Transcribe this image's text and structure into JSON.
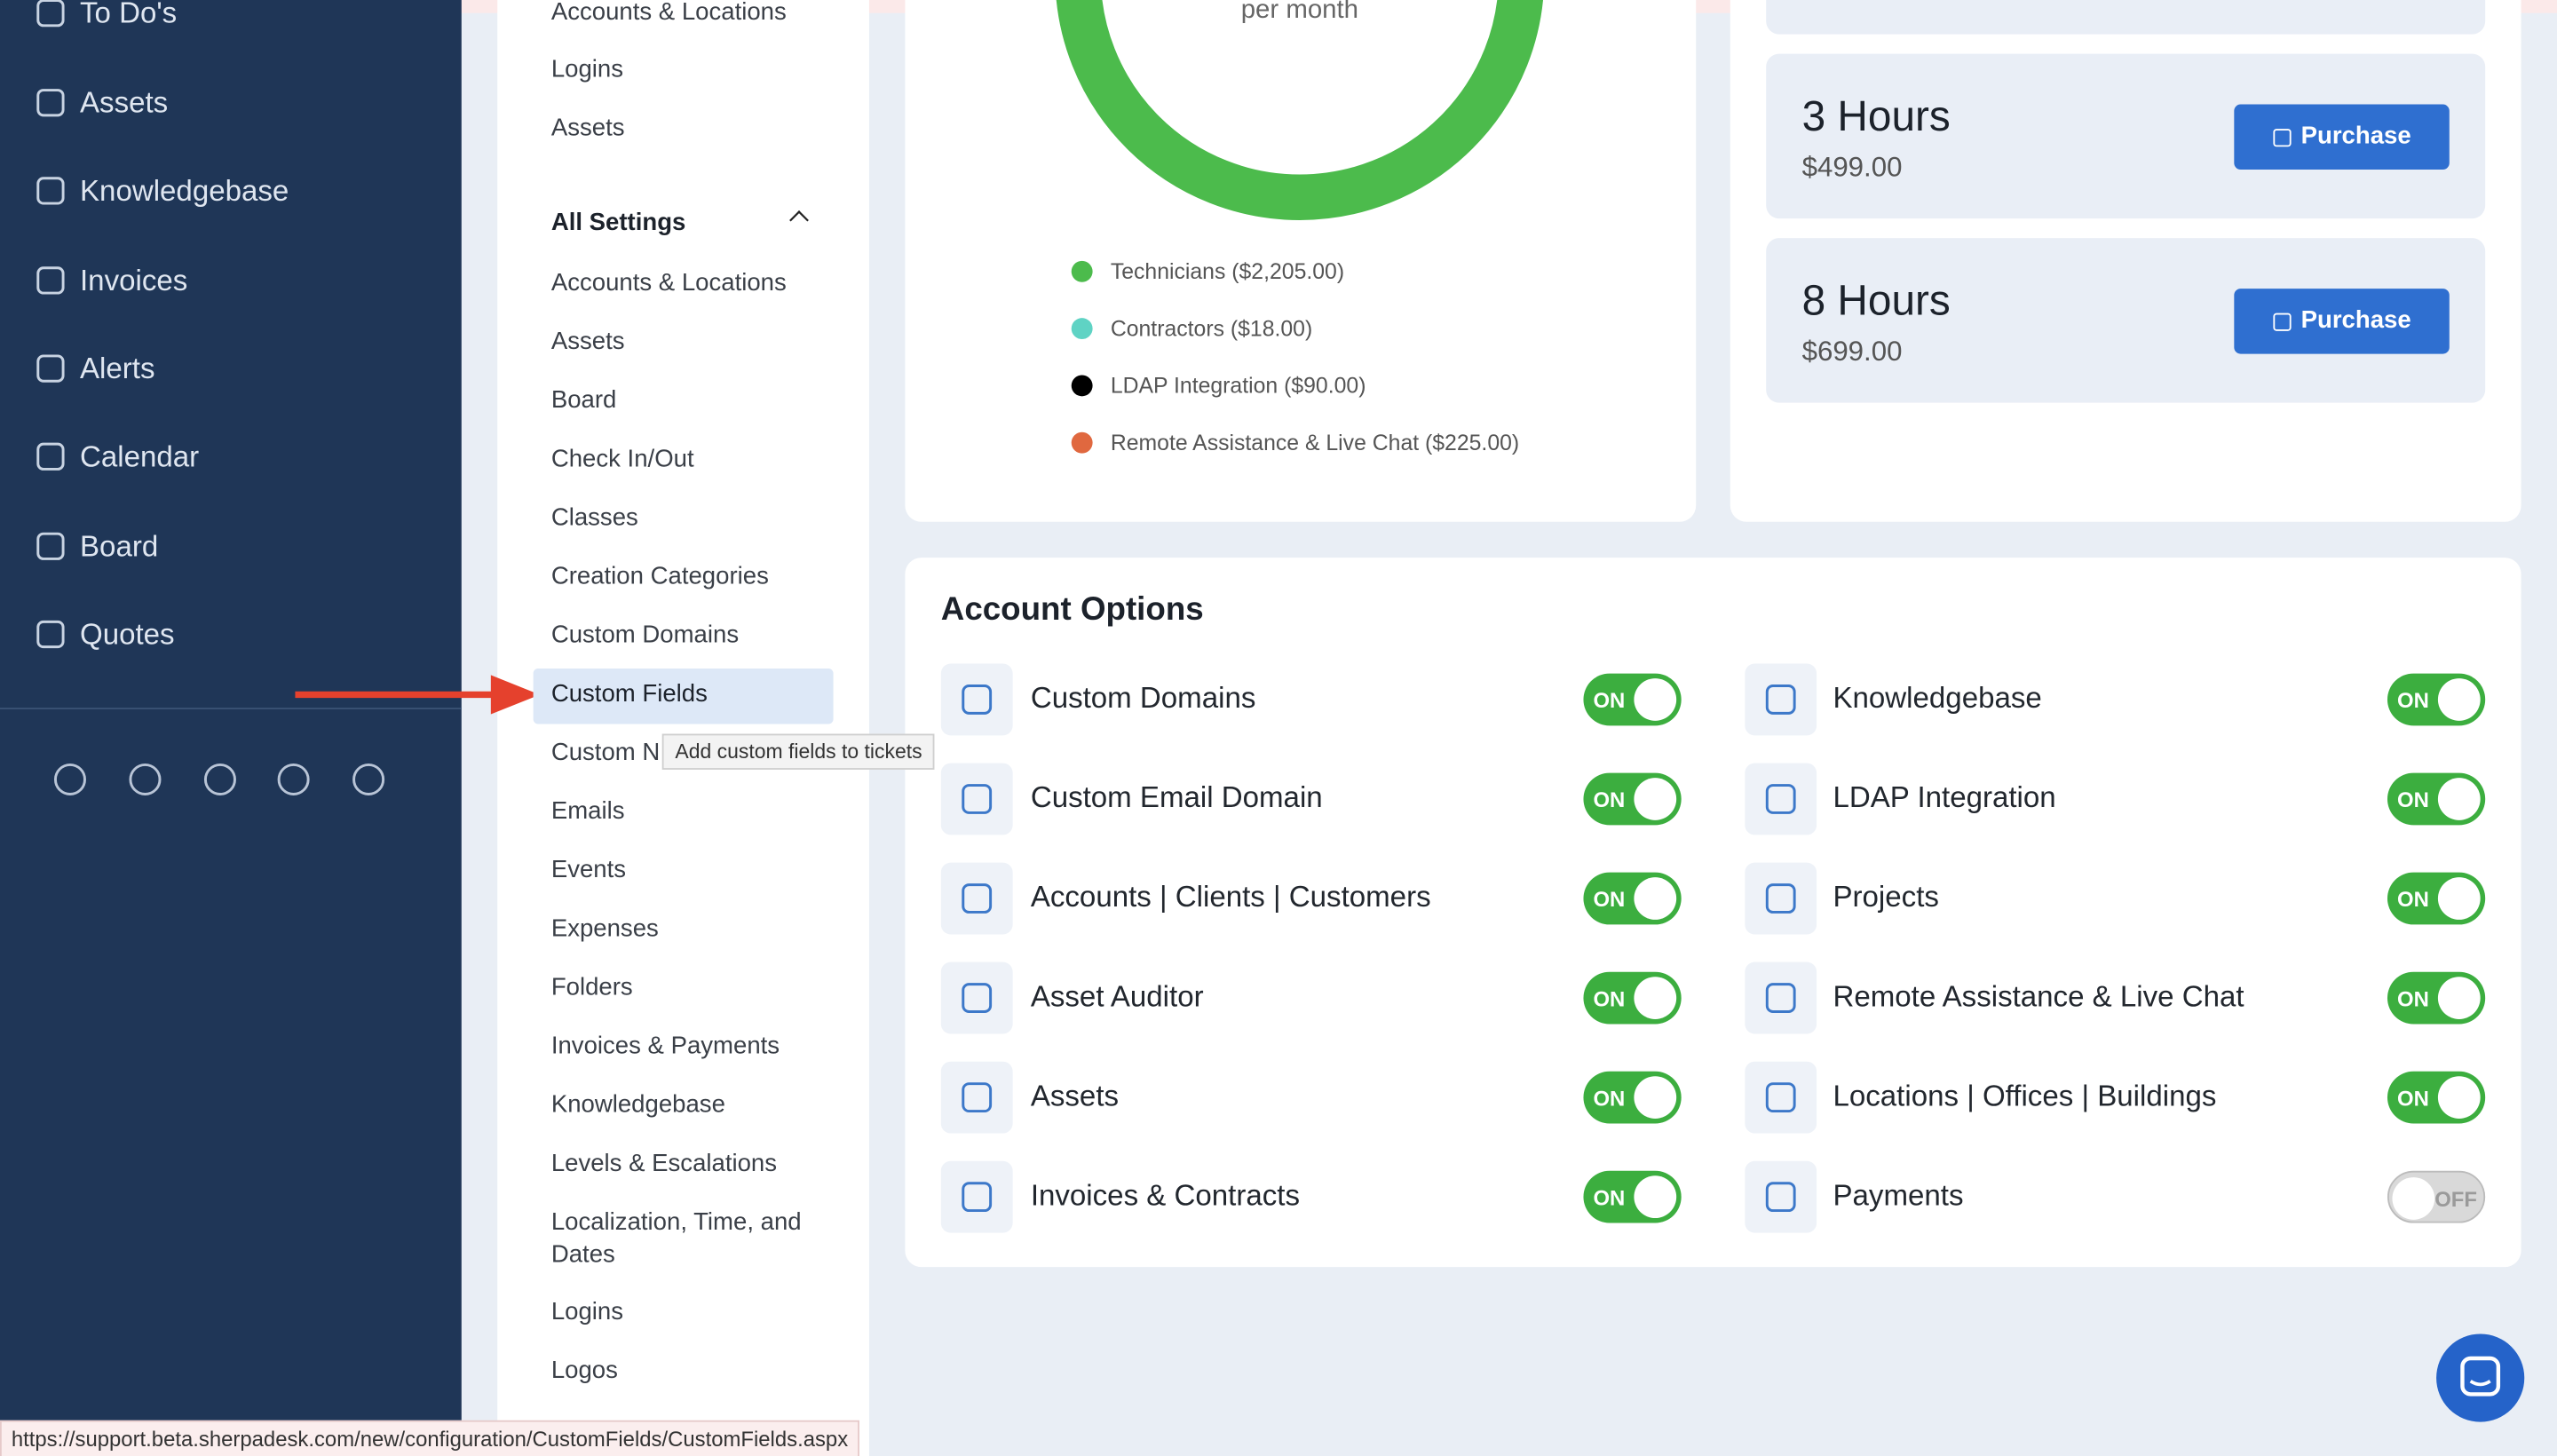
{
  "nav": {
    "items": [
      "To Do's",
      "Assets",
      "Knowledgebase",
      "Invoices",
      "Alerts",
      "Calendar",
      "Board",
      "Quotes"
    ]
  },
  "settings_menu": {
    "top_items": [
      "Accounts & Locations",
      "Logins",
      "Assets"
    ],
    "section_title": "All Settings",
    "items": [
      "Accounts & Locations",
      "Assets",
      "Board",
      "Check In/Out",
      "Classes",
      "Creation Categories",
      "Custom Domains",
      "Custom Fields",
      "Custom N",
      "Emails",
      "Events",
      "Expenses",
      "Folders",
      "Invoices & Payments",
      "Knowledgebase",
      "Levels & Escalations",
      "Localization, Time, and Dates",
      "Logins",
      "Logos"
    ]
  },
  "tooltip": "Add custom fields to tickets",
  "billing": {
    "center_text": "per month",
    "legend": [
      {
        "label": "Technicians ($2,205.00)",
        "color": "#4cbb4c"
      },
      {
        "label": "Contractors ($18.00)",
        "color": "#5fd3c4"
      },
      {
        "label": "LDAP Integration ($90.00)",
        "color": "#000000"
      },
      {
        "label": "Remote Assistance & Live Chat ($225.00)",
        "color": "#e0683f"
      }
    ]
  },
  "hours": [
    {
      "title": "3 Hours",
      "price": "$499.00",
      "button": "Purchase"
    },
    {
      "title": "8 Hours",
      "price": "$699.00",
      "button": "Purchase"
    }
  ],
  "account_options": {
    "title": "Account Options",
    "options": [
      {
        "label": "Custom Domains",
        "state": "ON"
      },
      {
        "label": "Custom Email Domain",
        "state": "ON"
      },
      {
        "label": "Accounts | Clients | Customers",
        "state": "ON"
      },
      {
        "label": "Asset Auditor",
        "state": "ON"
      },
      {
        "label": "Assets",
        "state": "ON"
      },
      {
        "label": "Invoices & Contracts",
        "state": "ON"
      },
      {
        "label": "Knowledgebase",
        "state": "ON"
      },
      {
        "label": "LDAP Integration",
        "state": "ON"
      },
      {
        "label": "Projects",
        "state": "ON"
      },
      {
        "label": "Remote Assistance & Live Chat",
        "state": "ON"
      },
      {
        "label": "Locations | Offices | Buildings",
        "state": "ON"
      },
      {
        "label": "Payments",
        "state": "OFF"
      }
    ]
  },
  "status_bar": "https://support.beta.sherpadesk.com/new/configuration/CustomFields/CustomFields.aspx"
}
